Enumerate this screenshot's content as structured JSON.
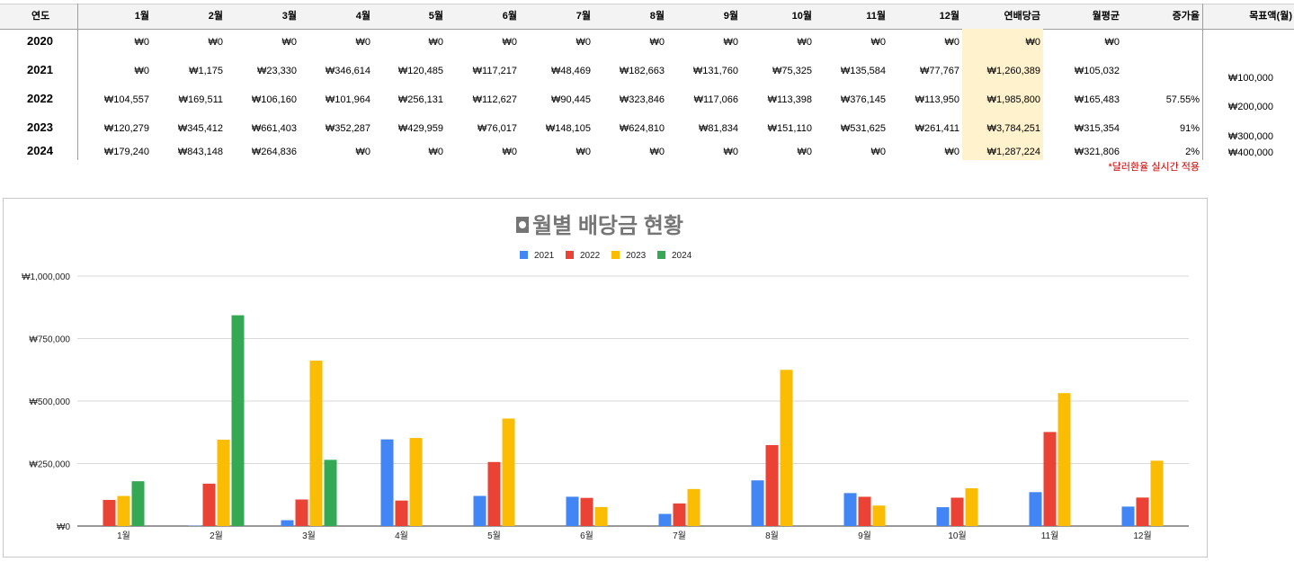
{
  "table": {
    "header": {
      "year": "연도",
      "months": [
        "1월",
        "2월",
        "3월",
        "4월",
        "5월",
        "6월",
        "7월",
        "8월",
        "9월",
        "10월",
        "11월",
        "12월"
      ],
      "annual": "연배당금",
      "monthly_avg": "월평균",
      "growth": "증가율",
      "target": "목표액(월)"
    },
    "rows": [
      {
        "year": "2020",
        "months": [
          "₩0",
          "₩0",
          "₩0",
          "₩0",
          "₩0",
          "₩0",
          "₩0",
          "₩0",
          "₩0",
          "₩0",
          "₩0",
          "₩0"
        ],
        "annual": "₩0",
        "avg": "₩0",
        "growth": "",
        "target": ""
      },
      {
        "year": "2021",
        "months": [
          "₩0",
          "₩1,175",
          "₩23,330",
          "₩346,614",
          "₩120,485",
          "₩117,217",
          "₩48,469",
          "₩182,663",
          "₩131,760",
          "₩75,325",
          "₩135,584",
          "₩77,767"
        ],
        "annual": "₩1,260,389",
        "avg": "₩105,032",
        "growth": "",
        "target": "₩100,000"
      },
      {
        "year": "2022",
        "months": [
          "₩104,557",
          "₩169,511",
          "₩106,160",
          "₩101,964",
          "₩256,131",
          "₩112,627",
          "₩90,445",
          "₩323,846",
          "₩117,066",
          "₩113,398",
          "₩376,145",
          "₩113,950"
        ],
        "annual": "₩1,985,800",
        "avg": "₩165,483",
        "growth": "57.55%",
        "target": "₩200,000"
      },
      {
        "year": "2023",
        "months": [
          "₩120,279",
          "₩345,412",
          "₩661,403",
          "₩352,287",
          "₩429,959",
          "₩76,017",
          "₩148,105",
          "₩624,810",
          "₩81,834",
          "₩151,110",
          "₩531,625",
          "₩261,411"
        ],
        "annual": "₩3,784,251",
        "avg": "₩315,354",
        "growth": "91%",
        "target": "₩300,000"
      },
      {
        "year": "2024",
        "months": [
          "₩179,240",
          "₩843,148",
          "₩264,836",
          "₩0",
          "₩0",
          "₩0",
          "₩0",
          "₩0",
          "₩0",
          "₩0",
          "₩0",
          "₩0"
        ],
        "annual": "₩1,287,224",
        "avg": "₩321,806",
        "growth": "2%",
        "target": "₩400,000"
      }
    ],
    "note": "*달러환율 실시간 적용"
  },
  "chart_data": {
    "type": "bar",
    "title": "월별 배당금 현황",
    "title_icon": "bullet-icon",
    "categories": [
      "1월",
      "2월",
      "3월",
      "4월",
      "5월",
      "6월",
      "7월",
      "8월",
      "9월",
      "10월",
      "11월",
      "12월"
    ],
    "series": [
      {
        "name": "2021",
        "color": "#4285f4",
        "values": [
          0,
          1175,
          23330,
          346614,
          120485,
          117217,
          48469,
          182663,
          131760,
          75325,
          135584,
          77767
        ]
      },
      {
        "name": "2022",
        "color": "#ea4335",
        "values": [
          104557,
          169511,
          106160,
          101964,
          256131,
          112627,
          90445,
          323846,
          117066,
          113398,
          376145,
          113950
        ]
      },
      {
        "name": "2023",
        "color": "#fbbc04",
        "values": [
          120279,
          345412,
          661403,
          352287,
          429959,
          76017,
          148105,
          624810,
          81834,
          151110,
          531625,
          261411
        ]
      },
      {
        "name": "2024",
        "color": "#34a853",
        "values": [
          179240,
          843148,
          264836,
          0,
          0,
          0,
          0,
          0,
          0,
          0,
          0,
          0
        ]
      }
    ],
    "yticks": [
      "₩0",
      "₩250,000",
      "₩500,000",
      "₩750,000",
      "₩1,000,000"
    ],
    "ylim": [
      0,
      1000000
    ],
    "grid": true,
    "legend_position": "top"
  }
}
